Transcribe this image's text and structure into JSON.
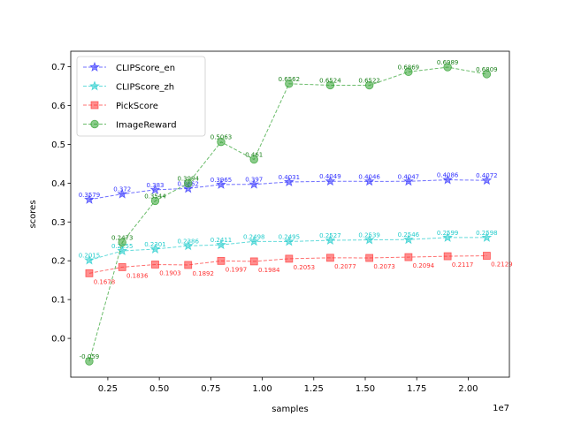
{
  "chart_data": {
    "type": "line",
    "xlabel": "samples",
    "ylabel": "scores",
    "x_offset_text": "1e7",
    "xlim": [
      0.07,
      2.2
    ],
    "ylim": [
      -0.1,
      0.74
    ],
    "xticks": [
      0.25,
      0.5,
      0.75,
      1.0,
      1.25,
      1.5,
      1.75,
      2.0
    ],
    "xtick_labels": [
      "0.25",
      "0.50",
      "0.75",
      "1.00",
      "1.25",
      "1.50",
      "1.75",
      "2.00"
    ],
    "yticks": [
      0.0,
      0.1,
      0.2,
      0.3,
      0.4,
      0.5,
      0.6,
      0.7
    ],
    "ytick_labels": [
      "0.0",
      "0.1",
      "0.2",
      "0.3",
      "0.4",
      "0.5",
      "0.6",
      "0.7"
    ],
    "legend_position": "top-left",
    "x": [
      0.16,
      0.32,
      0.48,
      0.64,
      0.8,
      0.96,
      1.13,
      1.33,
      1.52,
      1.71,
      1.9,
      2.09
    ],
    "series": [
      {
        "name": "CLIPScore_en",
        "color": "#3333ff",
        "marker": "star",
        "values": [
          0.3579,
          0.372,
          0.383,
          0.3862,
          0.3965,
          0.397,
          0.4031,
          0.4049,
          0.4046,
          0.4047,
          0.4086,
          0.4072
        ],
        "labels": [
          "0.3579",
          "0.372",
          "0.383",
          "0.3862",
          "0.3965",
          "0.397",
          "0.4031",
          "0.4049",
          "0.4046",
          "0.4047",
          "0.4086",
          "0.4072"
        ]
      },
      {
        "name": "CLIPScore_zh",
        "color": "#22cccc",
        "marker": "star",
        "values": [
          0.2015,
          0.2255,
          0.2301,
          0.2386,
          0.2411,
          0.2498,
          0.2495,
          0.2527,
          0.2539,
          0.2546,
          0.2599,
          0.2598
        ],
        "labels": [
          "0.2015",
          "0.2255",
          "0.2301",
          "0.2386",
          "0.2411",
          "0.2498",
          "0.2495",
          "0.2527",
          "0.2539",
          "0.2546",
          "0.2599",
          "0.2598"
        ]
      },
      {
        "name": "PickScore",
        "color": "#ff3333",
        "marker": "square",
        "values": [
          0.1678,
          0.1836,
          0.1903,
          0.1892,
          0.1997,
          0.1984,
          0.2053,
          0.2077,
          0.2073,
          0.2094,
          0.2117,
          0.2129
        ],
        "labels": [
          "0.1678",
          "0.1836",
          "0.1903",
          "0.1892",
          "0.1997",
          "0.1984",
          "0.2053",
          "0.2077",
          "0.2073",
          "0.2094",
          "0.2117",
          "0.2129"
        ]
      },
      {
        "name": "ImageReward",
        "color": "#2ca02c",
        "marker": "circle",
        "values": [
          -0.059,
          0.2473,
          0.3544,
          0.3994,
          0.5063,
          0.461,
          0.6562,
          0.6524,
          0.6522,
          0.6869,
          0.6989,
          0.6809
        ],
        "labels": [
          "-0.059",
          "0.2473",
          "0.3544",
          "0.3994",
          "0.5063",
          "0.461",
          "0.6562",
          "0.6524",
          "0.6522",
          "0.6869",
          "0.6989",
          "0.6809"
        ]
      }
    ]
  }
}
